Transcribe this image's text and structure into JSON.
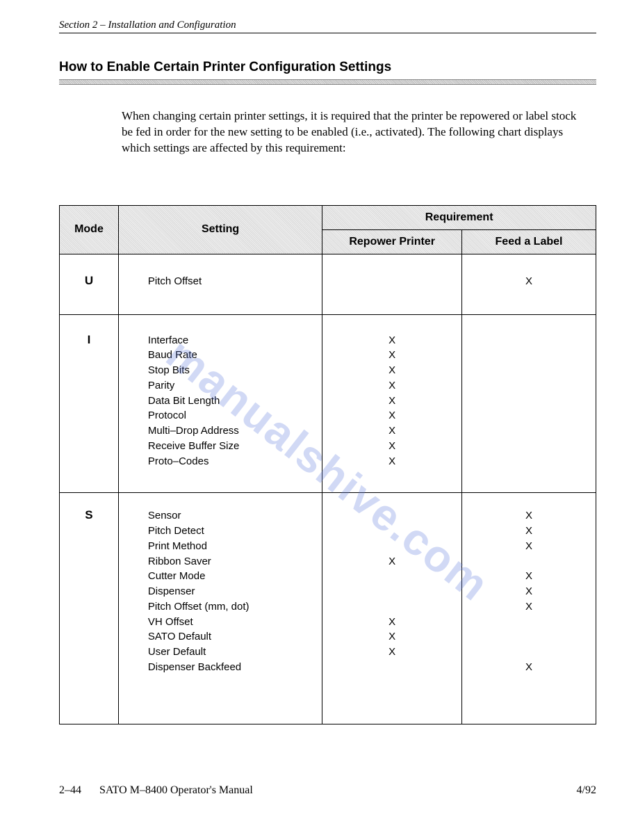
{
  "section_header": "Section 2 – Installation and Configuration",
  "title": "How to Enable Certain Printer Configuration Settings",
  "intro": "When changing certain printer settings, it is required that the printer be repowered or label stock be fed in order for the new setting to be enabled (i.e., activated).  The following chart displays which settings are affected by this requirement:",
  "watermark_text": "manualshive.com",
  "table": {
    "header": {
      "mode": "Mode",
      "setting": "Setting",
      "requirement": "Requirement",
      "repower": "Repower Printer",
      "feed": "Feed a Label"
    },
    "header_bg_color": "#e8e8e8",
    "border_color": "#000000",
    "mark_char": "X",
    "col_widths_pct": [
      11,
      38,
      26,
      25
    ],
    "font_family_header": "Arial",
    "font_family_body": "Arial",
    "font_size_header_pt": 12,
    "font_size_body_pt": 11,
    "groups": [
      {
        "mode": "U",
        "rows": [
          {
            "setting": "Pitch Offset",
            "repower": "",
            "feed": "X"
          }
        ]
      },
      {
        "mode": "I",
        "rows": [
          {
            "setting": "Interface",
            "repower": "X",
            "feed": ""
          },
          {
            "setting": "Baud Rate",
            "repower": "X",
            "feed": ""
          },
          {
            "setting": "Stop Bits",
            "repower": "X",
            "feed": ""
          },
          {
            "setting": "Parity",
            "repower": "X",
            "feed": ""
          },
          {
            "setting": "Data Bit Length",
            "repower": "X",
            "feed": ""
          },
          {
            "setting": "Protocol",
            "repower": "X",
            "feed": ""
          },
          {
            "setting": "Multi–Drop Address",
            "repower": "X",
            "feed": ""
          },
          {
            "setting": "Receive Buffer Size",
            "repower": "X",
            "feed": ""
          },
          {
            "setting": "Proto–Codes",
            "repower": "X",
            "feed": ""
          }
        ]
      },
      {
        "mode": "S",
        "rows": [
          {
            "setting": "Sensor",
            "repower": "",
            "feed": "X"
          },
          {
            "setting": "Pitch Detect",
            "repower": "",
            "feed": "X"
          },
          {
            "setting": "Print Method",
            "repower": "",
            "feed": "X"
          },
          {
            "setting": "Ribbon Saver",
            "repower": "X",
            "feed": ""
          },
          {
            "setting": "Cutter Mode",
            "repower": "",
            "feed": "X"
          },
          {
            "setting": "Dispenser",
            "repower": "",
            "feed": "X"
          },
          {
            "setting": "Pitch Offset (mm, dot)",
            "repower": "",
            "feed": "X"
          },
          {
            "setting": "VH Offset",
            "repower": "X",
            "feed": ""
          },
          {
            "setting": "SATO Default",
            "repower": "X",
            "feed": ""
          },
          {
            "setting": "User Default",
            "repower": "X",
            "feed": ""
          },
          {
            "setting": "Dispenser Backfeed",
            "repower": "",
            "feed": "X"
          }
        ]
      }
    ]
  },
  "footer": {
    "page_num": "2–44",
    "manual": "SATO M–8400 Operator's Manual",
    "date": "4/92"
  },
  "colors": {
    "text": "#000000",
    "background": "#ffffff",
    "watermark": "rgba(90,120,220,0.28)",
    "hatched_header": "#d8d8d8"
  }
}
